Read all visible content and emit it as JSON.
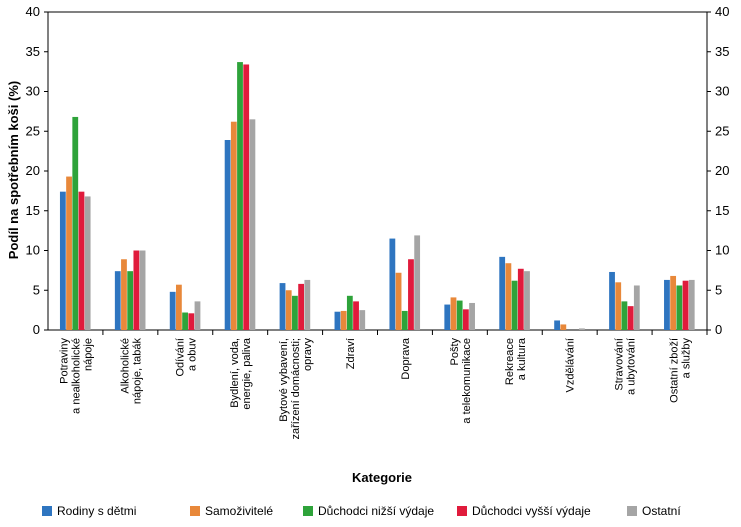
{
  "chart_data": {
    "type": "bar",
    "ylabel": "Podíl na spotřebním koši (%)",
    "xlabel": "Kategorie",
    "ylim": [
      0,
      40
    ],
    "yticks": [
      0,
      5,
      10,
      15,
      20,
      25,
      30,
      35,
      40
    ],
    "grid": false,
    "secondary_y_axis": true,
    "legend_position": "bottom",
    "categories": [
      [
        "Potraviny",
        "a nealkoholické",
        "nápoje"
      ],
      [
        "Alkoholické",
        "nápoje, tabák"
      ],
      [
        "Odívání",
        "a obuv"
      ],
      [
        "Bydlení, voda,",
        "energie, paliva"
      ],
      [
        "Bytové vybavení,",
        "zařízení domácnosti;",
        "opravy"
      ],
      [
        "Zdraví"
      ],
      [
        "Doprava"
      ],
      [
        "Pošty",
        "a telekomunikace"
      ],
      [
        "Rekreace",
        "a kultura"
      ],
      [
        "Vzdělávání"
      ],
      [
        "Stravování",
        "a ubytování"
      ],
      [
        "Ostatní zboží",
        "a služby"
      ]
    ],
    "series": [
      {
        "name": "Rodiny s dětmi",
        "color": "#2e75c0",
        "values": [
          17.4,
          7.4,
          4.8,
          23.9,
          5.9,
          2.3,
          11.5,
          3.2,
          9.2,
          1.2,
          7.3,
          6.3
        ]
      },
      {
        "name": "Samoživitelé",
        "color": "#e8883a",
        "values": [
          19.3,
          8.9,
          5.7,
          26.2,
          5.0,
          2.4,
          7.2,
          4.1,
          8.4,
          0.7,
          6.0,
          6.8
        ]
      },
      {
        "name": "Důchodci nižší výdaje",
        "color": "#2ea33a",
        "values": [
          26.8,
          7.4,
          2.2,
          33.7,
          4.3,
          4.3,
          2.4,
          3.7,
          6.2,
          0.0,
          3.6,
          5.6
        ]
      },
      {
        "name": "Důchodci vyšší výdaje",
        "color": "#e01b3c",
        "values": [
          17.4,
          10.0,
          2.1,
          33.4,
          5.8,
          3.6,
          8.9,
          2.6,
          7.7,
          0.0,
          3.0,
          6.2
        ]
      },
      {
        "name": "Ostatní",
        "color": "#a5a5a5",
        "values": [
          16.8,
          10.0,
          3.6,
          26.5,
          6.3,
          2.5,
          11.9,
          3.4,
          7.4,
          0.2,
          5.6,
          6.3
        ]
      }
    ]
  }
}
